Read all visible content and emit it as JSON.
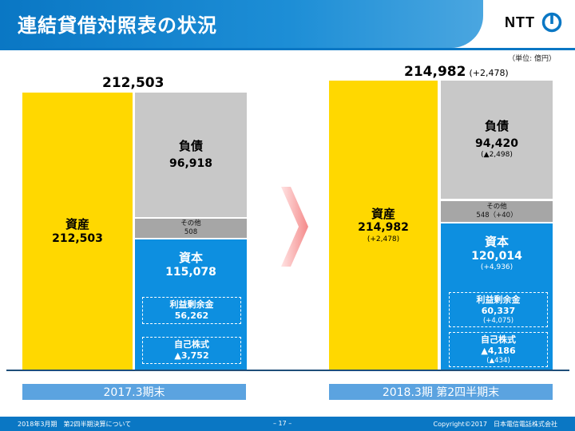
{
  "header": {
    "title": "連結貸借対照表の状況",
    "logo_text": "NTT",
    "unit": "（単位: 億円）"
  },
  "left": {
    "total": "212,503",
    "assets": {
      "label": "資産",
      "value": "212,503"
    },
    "liabilities": {
      "label": "負債",
      "value": "96,918"
    },
    "other": {
      "label": "その他",
      "value": "508"
    },
    "equity": {
      "label": "資本",
      "value": "115,078"
    },
    "retained": {
      "label": "利益剰余金",
      "value": "56,262"
    },
    "treasury": {
      "label": "自己株式",
      "value": "▲3,752"
    },
    "period": "2017.3期末"
  },
  "right": {
    "total": "214,982",
    "total_delta": "(+2,478)",
    "assets": {
      "label": "資産",
      "value": "214,982",
      "delta": "(+2,478)"
    },
    "liabilities": {
      "label": "負債",
      "value": "94,420",
      "delta": "(▲2,498)"
    },
    "other": {
      "label": "その他",
      "value": "548（+40）"
    },
    "equity": {
      "label": "資本",
      "value": "120,014",
      "delta": "(+4,936)"
    },
    "retained": {
      "label": "利益剰余金",
      "value": "60,337",
      "delta": "(+4,075)"
    },
    "treasury": {
      "label": "自己株式",
      "value": "▲4,186",
      "delta": "(▲434)"
    },
    "period": "2018.3期 第2四半期末"
  },
  "footer": {
    "left": "2018年3月期　第2四半期決算について",
    "page": "– 17 –",
    "right": "Copyright©2017　日本電信電話株式会社"
  },
  "colors": {
    "assets": "#ffd800",
    "liabilities": "#c8c8c8",
    "other": "#a6a6a6",
    "equity": "#0d8fe0",
    "brand": "#0a77c4"
  }
}
